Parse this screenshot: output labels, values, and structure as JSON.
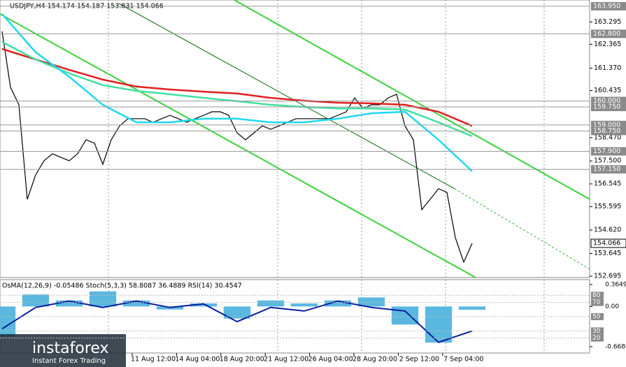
{
  "chart_data": [
    {
      "type": "line",
      "title": "USDJPY,H4  154.174 154.187 153.831 154.066",
      "xticks": [
        "11 Aug 12:00",
        "14 Aug 04:00",
        "18 Aug 20:00",
        "21 Aug 12:00",
        "26 Aug 04:00",
        "28 Aug 20:00",
        "2 Sep 12:00",
        "7 Sep 04:00"
      ],
      "ylim": [
        152.64,
        164.21
      ],
      "yticks": [
        163.295,
        162.365,
        {
          "value": 161.37,
          "label": "161.370"
        },
        160.435,
        {
          "value": 158.47,
          "label": "158.470"
        },
        {
          "value": 157.5,
          "label": "157.500"
        },
        156.545,
        155.595,
        {
          "value": 154.62,
          "label": "154.620"
        },
        153.645,
        152.695
      ],
      "levels": [
        {
          "value": 163.95,
          "label": "163.950"
        },
        {
          "value": 162.8,
          "label": "162.800"
        },
        {
          "value": 160,
          "label": "160.000"
        },
        {
          "value": 159.75,
          "label": "159.750"
        },
        {
          "value": 159,
          "label": "159.000"
        },
        {
          "value": 158.75,
          "label": "158.750"
        },
        {
          "value": 157.9,
          "label": "157.900"
        },
        {
          "value": 157.15,
          "label": "157.150"
        }
      ],
      "current_price": 154.066,
      "series": [
        {
          "color": "#000000",
          "values": [
            162.9,
            160.57,
            159.84,
            155.9,
            156.92,
            157.51,
            157.8,
            157.65,
            157.51,
            157.8,
            158.38,
            158.24,
            157.36,
            158.38,
            158.96,
            159.26,
            159.26,
            159.26,
            159.11,
            159.26,
            159.4,
            159.26,
            159.11,
            159.26,
            159.4,
            159.55,
            159.55,
            159.4,
            158.67,
            158.38,
            158.67,
            158.96,
            158.82,
            158.96,
            159.11,
            159.26,
            159.26,
            159.26,
            159.26,
            159.26,
            159.4,
            159.55,
            160.13,
            159.69,
            159.84,
            159.84,
            160.13,
            160.28,
            158.96,
            158.38,
            155.47,
            155.9,
            156.34,
            156.19,
            154.3,
            153.28,
            154.066
          ]
        },
        {
          "color": "#e02020",
          "values": [
            162.17,
            161.73,
            161.3,
            160.89,
            160.6,
            160.48,
            160.39,
            160.31,
            160.13,
            160.01,
            159.93,
            159.9,
            159.84,
            159.55,
            158.96
          ]
        },
        {
          "color": "#40e0a0",
          "values": [
            162.46,
            161.73,
            161.15,
            160.66,
            160.42,
            160.28,
            160.13,
            159.99,
            159.84,
            159.75,
            159.69,
            159.69,
            159.64,
            159.11,
            158.53
          ]
        },
        {
          "color": "#20d8f0",
          "values": [
            163.63,
            162.03,
            161.01,
            159.84,
            159.11,
            159.11,
            159.26,
            159.26,
            159.11,
            159.11,
            159.26,
            159.49,
            159.55,
            158.38,
            157.07
          ]
        }
      ]
    },
    {
      "type": "line",
      "title": "OsMA(12,26,9) -0.05486  Stoch(5,3,3) 58.8087 36.4889  RSI(14) 30.4547",
      "ylim": [
        -1,
        102
      ],
      "yticks": [
        80,
        70,
        50,
        30,
        20
      ],
      "y2lim": [
        -0.773,
        0.446
      ],
      "y2ticks": [
        0.3649,
        {
          "value": 0,
          "label": "0.00"
        },
        {
          "value": -0.668,
          "label": "-0.6680"
        }
      ],
      "series": [
        {
          "type": "bar",
          "axis": "y2",
          "color": "#5ab8e0",
          "values": [
            -0.5,
            0.2,
            0.1,
            0.25,
            0.1,
            -0.05,
            0.05,
            -0.2,
            0.1,
            0.05,
            0.1,
            0.15,
            -0.3,
            -0.6,
            -0.05486
          ]
        },
        {
          "type": "line",
          "color": "#0a1e9c",
          "values": [
            33,
            63,
            72,
            63,
            72,
            63,
            68,
            43,
            63,
            58,
            72,
            63,
            58,
            14,
            30
          ]
        }
      ]
    }
  ],
  "logo": {
    "name": "instaforex",
    "tagline": "Instant Forex Trading"
  }
}
